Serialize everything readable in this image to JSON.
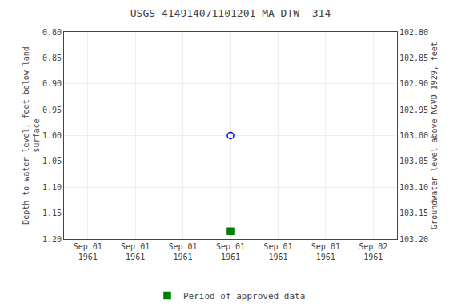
{
  "chart_data": {
    "type": "scatter",
    "title": "USGS 414914071101201 MA-DTW  314",
    "y_label": "Depth to water level, feet below land\nsurface",
    "y2_label": "Groundwater level above NGVD 1929, feet",
    "categories": [
      "Sep 01\n1961",
      "Sep 01\n1961",
      "Sep 01\n1961",
      "Sep 01\n1961",
      "Sep 01\n1961",
      "Sep 01\n1961",
      "Sep 02\n1961"
    ],
    "series": [
      {
        "color": "#0000ff",
        "marker": "circle-open",
        "values": [
          null,
          null,
          null,
          1.0,
          null,
          null,
          null
        ]
      },
      {
        "name": "Period of approved data",
        "color": "#008000",
        "marker": "square",
        "values": [
          null,
          null,
          null,
          1.185,
          null,
          null,
          null
        ]
      }
    ],
    "ylim": [
      1.2,
      0.8
    ],
    "yticks": [
      {
        "value": 0.8,
        "label": "0.80"
      },
      0.85,
      {
        "value": 0.9,
        "label": "0.90"
      },
      0.95,
      {
        "value": 1.0,
        "label": "1.00"
      },
      1.05,
      {
        "value": 1.1,
        "label": "1.10"
      },
      1.15,
      {
        "value": 1.2,
        "label": "1.20"
      }
    ],
    "y2lim": [
      103.2,
      102.8
    ],
    "y2ticks": [
      {
        "value": 103.2,
        "label": "103.20"
      },
      103.15,
      {
        "value": 103.1,
        "label": "103.10"
      },
      103.05,
      {
        "value": 103.0,
        "label": "103.00"
      },
      102.95,
      {
        "value": 102.9,
        "label": "102.90"
      },
      102.85,
      {
        "value": 102.8,
        "label": "102.80"
      }
    ],
    "grid": true,
    "legend": "bottom"
  }
}
